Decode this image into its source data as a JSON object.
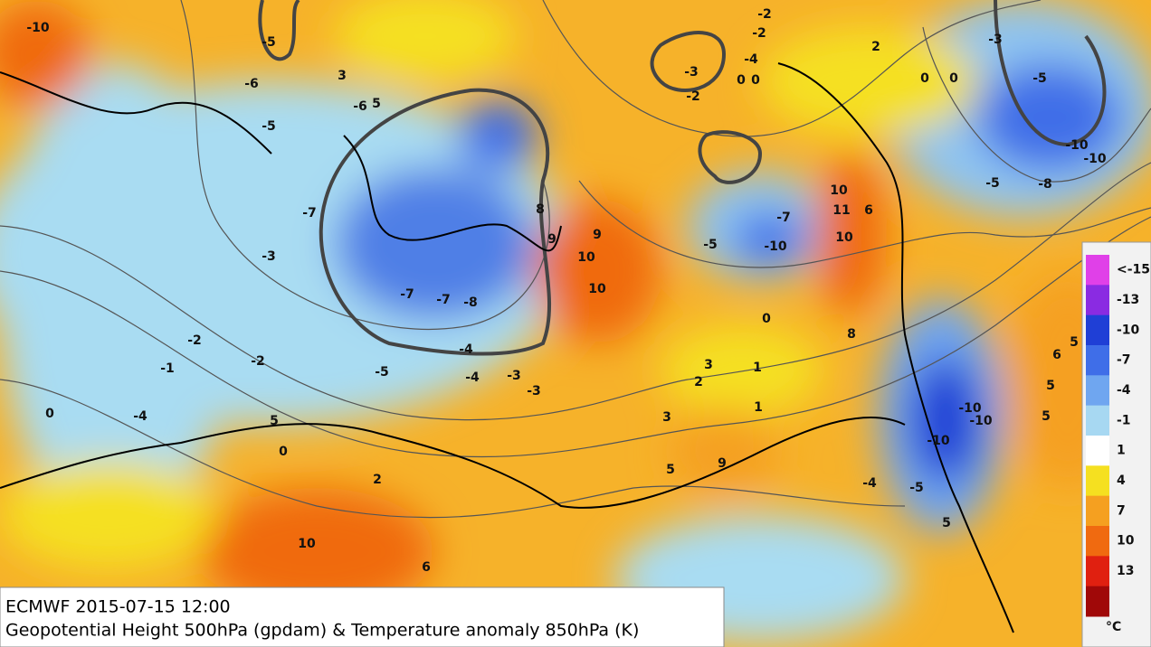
{
  "header": {
    "title": "ECMWF 2015-07-15 12:00",
    "subtitle": "Geopotential Height 500hPa (gpdam) & Temperature anomaly 850hPa (K)"
  },
  "colorbar": {
    "labels": [
      "<-15",
      "-13",
      "-10",
      "-7",
      "-4",
      "-1",
      "1",
      "4",
      "7",
      "10",
      "13"
    ],
    "unit": "°C",
    "colors": [
      "#e040e8",
      "#8a2be2",
      "#1f3fd6",
      "#3f6ee8",
      "#6fa6f0",
      "#a7d8f2",
      "#ffffff",
      "#f5e020",
      "#f5a020",
      "#f06a10",
      "#e02010",
      "#a00808"
    ]
  },
  "map": {
    "labels": [
      "-5",
      "-6",
      "3",
      "-6",
      "5",
      "-5",
      "-7",
      "-7",
      "-7",
      "-8",
      "-4",
      "-5",
      "-4",
      "-3",
      "-3",
      "-2",
      "-2",
      "-3",
      "-1",
      "-4",
      "0",
      "0",
      "2",
      "10",
      "6",
      "5",
      "9",
      "10",
      "10",
      "8",
      "9",
      "3",
      "5",
      "9",
      "1",
      "2",
      "3",
      "1",
      "0",
      "10",
      "11",
      "6",
      "10",
      "8",
      "-10",
      "-7",
      "-5",
      "-10",
      "-10",
      "-10",
      "-4",
      "-5",
      "5",
      "-10",
      "-10",
      "-8",
      "-5",
      "-5",
      "-3",
      "0",
      "0",
      "2",
      "-2",
      "-3",
      "-2",
      "-2",
      "-4",
      "0",
      "0",
      "5",
      "6",
      "5",
      "5",
      "-10"
    ]
  }
}
